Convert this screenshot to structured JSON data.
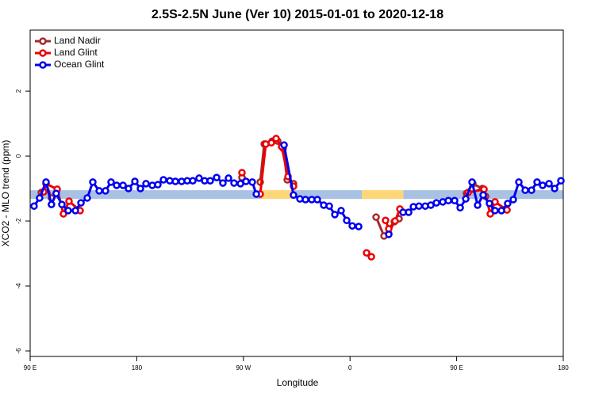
{
  "chart_data": {
    "type": "line",
    "title": "2.5S-2.5N June (Ver 10)   2015-01-01 to 2020-12-18",
    "x_label": "Longitude",
    "y_label": "XCO2 - MLO trend (ppm)",
    "xlim": [
      90,
      540
    ],
    "ylim": [
      -6.17,
      3.88
    ],
    "xticks": [
      {
        "value": 90,
        "label": "90 E"
      },
      180,
      {
        "value": 270,
        "label": "90 W"
      },
      {
        "value": 360,
        "label": "0"
      },
      {
        "value": 450,
        "label": "90 E"
      },
      {
        "value": 540,
        "label": "180"
      }
    ],
    "yticks": [
      -6,
      -4,
      -2,
      0,
      2
    ],
    "legend": "top-left",
    "band": {
      "y": [
        -1.32,
        -1.05
      ],
      "segments": [
        {
          "x": [
            90,
            285.6
          ],
          "color": "#a9c1e3"
        },
        {
          "x": [
            285.6,
            312
          ],
          "color": "#fcd679"
        },
        {
          "x": [
            312,
            370
          ],
          "color": "#a9c1e3"
        },
        {
          "x": [
            370,
            405
          ],
          "color": "#fcd679"
        },
        {
          "x": [
            405,
            540
          ],
          "color": "#a9c1e3"
        }
      ]
    },
    "series": [
      {
        "name": "Land Nadir",
        "color": "#a52a2a",
        "x": [
          99.4,
          103.4,
          108,
          null,
          268.8,
          null,
          284.2,
          287.6,
          294.3,
          299,
          303.6,
          307,
          312.3,
          null,
          382,
          388.7,
          392.7,
          397.4,
          401.4,
          null,
          458.3,
          463.7,
          471.7,
          474.4
        ],
        "values": [
          -1.12,
          -0.85,
          -1.29,
          null,
          -0.66,
          null,
          -0.8,
          0.37,
          0.46,
          0.46,
          0.24,
          -0.73,
          -0.85,
          null,
          -1.88,
          -2.46,
          -2.39,
          -2.02,
          -1.93,
          null,
          -1.15,
          -0.85,
          -1.0,
          -1.24
        ]
      },
      {
        "name": "Land Glint",
        "color": "#ee0000",
        "x": [
          101.4,
          103.4,
          112.8,
          118.1,
          122.8,
          132.2,
          null,
          268.8,
          null,
          284.2,
          288.9,
          293.6,
          297.6,
          302.3,
          307.7,
          312.3,
          null,
          374,
          378,
          null,
          390,
          392.7,
          398,
          402.1,
          null,
          459.7,
          473.1,
          478.4,
          482.4,
          492.5
        ],
        "values": [
          -1.1,
          -0.85,
          -1.02,
          -1.78,
          -1.39,
          -1.68,
          null,
          -0.51,
          null,
          -1.17,
          0.37,
          0.41,
          0.54,
          0.29,
          -0.63,
          -0.93,
          null,
          -2.98,
          -3.1,
          null,
          -1.98,
          -2.24,
          -2.0,
          -1.63,
          null,
          -1.12,
          -1.02,
          -1.78,
          -1.41,
          -1.66
        ]
      },
      {
        "name": "Ocean Glint",
        "color": "#0000ee",
        "x": [
          93.3,
          98,
          103.4,
          108,
          112,
          116.8,
          122.1,
          128.2,
          132.9,
          138.2,
          142.9,
          148.3,
          153.6,
          158.3,
          163,
          168.4,
          173,
          178.4,
          183.1,
          187.8,
          193.1,
          197.8,
          202.5,
          207.9,
          212.6,
          217.9,
          222.6,
          227.3,
          232.6,
          237.3,
          242,
          247.4,
          252.7,
          257.4,
          262.1,
          267.5,
          272.2,
          277.5,
          280.9,
          null,
          304.3,
          312.3,
          317.7,
          322.4,
          327.7,
          332.4,
          337.8,
          342.5,
          347.2,
          352.5,
          357.2,
          361.9,
          367.3,
          null,
          392.7,
          null,
          404.8,
          409.5,
          413.5,
          418.2,
          423.5,
          428.2,
          432.9,
          438.3,
          443,
          448.3,
          453,
          457.7,
          463,
          467.7,
          472.4,
          477.7,
          482.4,
          487.8,
          493.1,
          497.8,
          502.5,
          507.9,
          513.2,
          517.9,
          522.6,
          528,
          532.7,
          538
        ],
        "values": [
          -1.54,
          -1.29,
          -0.8,
          -1.49,
          -1.15,
          -1.49,
          -1.68,
          -1.68,
          -1.44,
          -1.29,
          -0.8,
          -1.07,
          -1.07,
          -0.8,
          -0.9,
          -0.9,
          -1.0,
          -0.78,
          -1.0,
          -0.85,
          -0.9,
          -0.88,
          -0.73,
          -0.76,
          -0.78,
          -0.78,
          -0.76,
          -0.76,
          -0.68,
          -0.76,
          -0.76,
          -0.66,
          -0.83,
          -0.68,
          -0.83,
          -0.85,
          -0.78,
          -0.8,
          -1.17,
          null,
          0.34,
          -1.2,
          -1.32,
          -1.34,
          -1.34,
          -1.34,
          -1.51,
          -1.54,
          -1.8,
          -1.68,
          -1.98,
          -2.15,
          -2.17,
          null,
          -2.41,
          null,
          -1.73,
          -1.73,
          -1.56,
          -1.54,
          -1.54,
          -1.51,
          -1.44,
          -1.41,
          -1.37,
          -1.37,
          -1.59,
          -1.32,
          -0.8,
          -1.51,
          -1.2,
          -1.46,
          -1.68,
          -1.68,
          -1.46,
          -1.34,
          -0.8,
          -1.05,
          -1.05,
          -0.8,
          -0.9,
          -0.85,
          -1.0,
          -0.76
        ]
      }
    ]
  }
}
